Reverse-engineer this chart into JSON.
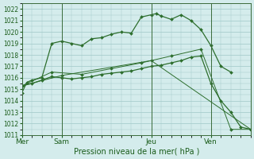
{
  "background_color": "#d4ecec",
  "grid_color": "#a0c8c8",
  "line_color": "#2d6e2d",
  "title": "Pression niveau de la mer( hPa )",
  "ylim": [
    1011,
    1022.5
  ],
  "yticks": [
    1011,
    1012,
    1013,
    1014,
    1015,
    1016,
    1017,
    1018,
    1019,
    1020,
    1021,
    1022
  ],
  "day_labels": [
    "Mer",
    "Sam",
    "Jeu",
    "Ven"
  ],
  "day_positions": [
    0,
    4,
    13,
    19
  ],
  "series1_x": [
    0,
    0.5,
    1,
    2,
    3,
    4,
    5,
    6,
    7,
    8,
    9,
    10,
    11,
    12,
    13,
    13.5,
    14,
    15,
    16,
    17,
    18,
    19,
    20,
    21
  ],
  "series1_y": [
    1014.7,
    1015.6,
    1015.8,
    1016.0,
    1019.0,
    1019.2,
    1019.0,
    1018.8,
    1019.4,
    1019.5,
    1019.8,
    1020.0,
    1019.9,
    1021.3,
    1021.5,
    1021.6,
    1021.4,
    1021.1,
    1021.5,
    1021.0,
    1020.2,
    1018.8,
    1017.0,
    1016.5
  ],
  "series2_x": [
    0,
    1,
    2,
    3,
    4,
    5,
    6,
    7,
    8,
    9,
    10,
    11,
    12,
    13,
    14,
    15,
    16,
    17,
    18,
    19,
    20,
    21,
    22,
    23
  ],
  "series2_y": [
    1015.3,
    1015.5,
    1015.8,
    1016.1,
    1016.0,
    1015.9,
    1016.0,
    1016.1,
    1016.3,
    1016.4,
    1016.5,
    1016.6,
    1016.8,
    1017.0,
    1017.1,
    1017.3,
    1017.5,
    1017.8,
    1017.9,
    1015.5,
    1014.0,
    1013.0,
    1011.7,
    1011.5
  ],
  "series3_x": [
    0,
    3,
    6,
    9,
    12,
    15,
    18,
    21,
    23
  ],
  "series3_y": [
    1015.3,
    1016.5,
    1016.3,
    1016.8,
    1017.3,
    1017.9,
    1018.5,
    1011.5,
    1011.5
  ],
  "series4_x": [
    0,
    4,
    13,
    23
  ],
  "series4_y": [
    1015.3,
    1016.2,
    1017.5,
    1011.5
  ],
  "xlim": [
    0,
    23
  ]
}
